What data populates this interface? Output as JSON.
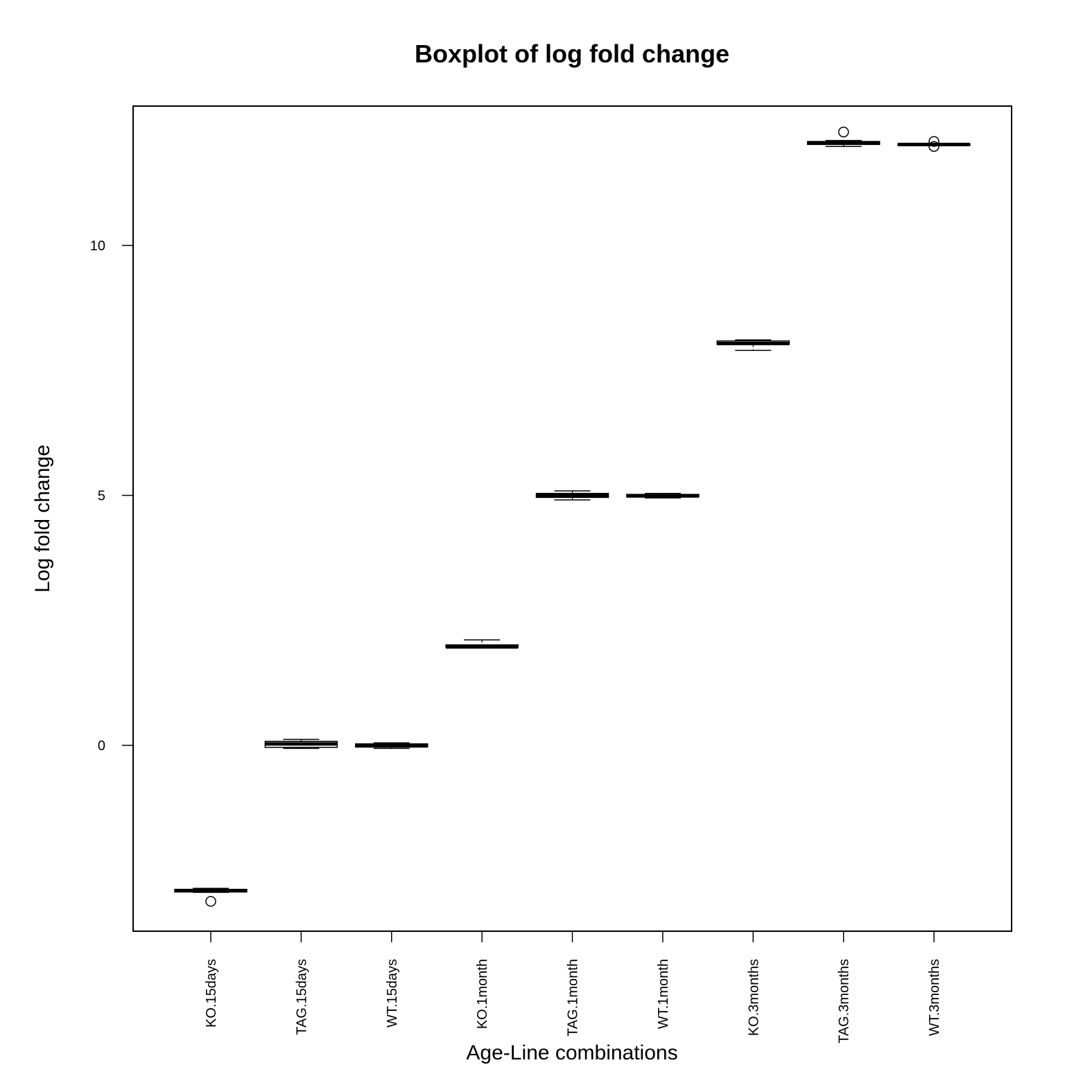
{
  "chart_data": {
    "type": "boxplot",
    "title": "Boxplot of log fold change",
    "xlabel": "Age-Line combinations",
    "ylabel": "Log fold change",
    "ylim": [
      -3.7,
      12.8
    ],
    "yticks": [
      0,
      5,
      10
    ],
    "grid": false,
    "legend": "none",
    "categories": [
      "KO.15days",
      "TAG.15days",
      "WT.15days",
      "KO.1month",
      "TAG.1month",
      "WT.1month",
      "KO.3months",
      "TAG.3months",
      "WT.3months"
    ],
    "boxes": [
      {
        "min": -2.94,
        "q1": -2.93,
        "median": -2.91,
        "q3": -2.88,
        "max": -2.86,
        "outliers": [
          -3.12
        ]
      },
      {
        "min": -0.06,
        "q1": -0.04,
        "median": 0.03,
        "q3": 0.08,
        "max": 0.12,
        "outliers": []
      },
      {
        "min": -0.06,
        "q1": -0.03,
        "median": -0.01,
        "q3": 0.03,
        "max": 0.05,
        "outliers": []
      },
      {
        "min": 1.95,
        "q1": 1.96,
        "median": 1.97,
        "q3": 2.01,
        "max": 2.11,
        "outliers": []
      },
      {
        "min": 4.91,
        "q1": 4.96,
        "median": 5.0,
        "q3": 5.04,
        "max": 5.09,
        "outliers": []
      },
      {
        "min": 4.95,
        "q1": 4.97,
        "median": 4.99,
        "q3": 5.02,
        "max": 5.04,
        "outliers": []
      },
      {
        "min": 7.9,
        "q1": 8.02,
        "median": 8.04,
        "q3": 8.09,
        "max": 8.11,
        "outliers": []
      },
      {
        "min": 11.98,
        "q1": 12.02,
        "median": 12.05,
        "q3": 12.08,
        "max": 12.1,
        "outliers": [
          12.27
        ]
      },
      {
        "min": 12.0,
        "q1": 12.01,
        "median": 12.02,
        "q3": 12.03,
        "max": 12.04,
        "outliers": [
          12.08,
          11.98
        ]
      }
    ]
  }
}
